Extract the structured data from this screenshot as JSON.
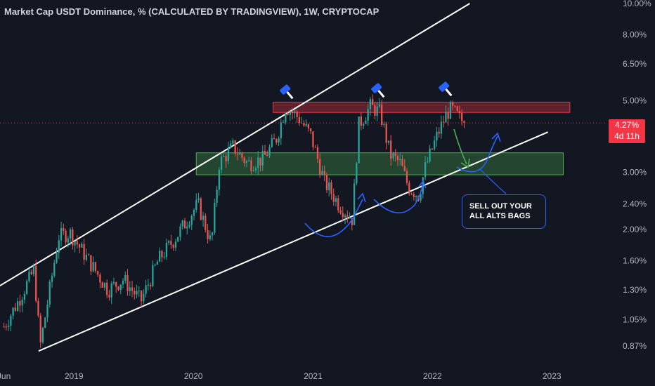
{
  "chart_title": "Market Cap USDT Dominance, % (CALCULATED BY TRADINGVIEW), 1W, CRYPTOCAP",
  "current_price": {
    "value": "4.27%",
    "countdown": "4d 11h"
  },
  "annotation": {
    "line1": "SELL OUT YOUR",
    "line2": "ALL ALTS BAGS"
  },
  "colors": {
    "background": "#131722",
    "up": "#26a69a",
    "down": "#ef5350",
    "resistance_zone": "#f23645",
    "support_zone": "#4caf50",
    "arrows": "#2962ff",
    "trendlines": "#ffffff"
  },
  "chart_data": {
    "type": "candlestick",
    "scale": "logarithmic",
    "y_tick_labels": [
      "10.00%",
      "8.00%",
      "6.50%",
      "5.00%",
      "3.00%",
      "2.40%",
      "2.00%",
      "1.60%",
      "1.30%",
      "1.05%",
      "0.87%"
    ],
    "x_tick_labels": [
      "Jun",
      "2019",
      "2020",
      "2021",
      "2022",
      "2023"
    ],
    "ylim": [
      0.82,
      10.0
    ],
    "x_range": [
      "2018-05-20",
      "2023-06-15"
    ],
    "current_value": 4.27,
    "resistance_zone": {
      "from": 4.6,
      "to": 4.95,
      "x_start": "2020-09-01",
      "x_end": "2023-02-25"
    },
    "support_zone": {
      "from": 2.95,
      "to": 3.45,
      "x_start": "2020-01-10",
      "x_end": "2023-02-05"
    },
    "channel_upper": [
      [
        "2018-04-01",
        1.25
      ],
      [
        "2022-04-25",
        10.0
      ]
    ],
    "channel_lower": [
      [
        "2018-09-15",
        0.84
      ],
      [
        "2022-12-20",
        4.0
      ]
    ],
    "anchors": [
      [
        "2018-06-01",
        1.0
      ],
      [
        "2018-07-15",
        1.2
      ],
      [
        "2018-09-01",
        1.5
      ],
      [
        "2018-09-20",
        0.87
      ],
      [
        "2018-11-15",
        1.9
      ],
      [
        "2018-12-20",
        1.95
      ],
      [
        "2019-02-15",
        1.6
      ],
      [
        "2019-04-15",
        1.3
      ],
      [
        "2019-06-01",
        1.4
      ],
      [
        "2019-07-25",
        1.2
      ],
      [
        "2019-09-15",
        1.6
      ],
      [
        "2019-11-10",
        1.9
      ],
      [
        "2019-12-15",
        2.15
      ],
      [
        "2020-01-15",
        2.4
      ],
      [
        "2020-02-25",
        1.8
      ],
      [
        "2020-03-20",
        3.2
      ],
      [
        "2020-05-01",
        3.6
      ],
      [
        "2020-06-15",
        3.2
      ],
      [
        "2020-08-01",
        3.3
      ],
      [
        "2020-09-10",
        3.8
      ],
      [
        "2020-10-10",
        4.8
      ],
      [
        "2020-11-20",
        4.4
      ],
      [
        "2020-12-25",
        3.9
      ],
      [
        "2021-02-05",
        2.8
      ],
      [
        "2021-03-20",
        2.4
      ],
      [
        "2021-05-01",
        2.15
      ],
      [
        "2021-05-20",
        4.2
      ],
      [
        "2021-06-25",
        4.8
      ],
      [
        "2021-07-25",
        4.6
      ],
      [
        "2021-08-25",
        3.4
      ],
      [
        "2021-09-25",
        3.2
      ],
      [
        "2021-10-20",
        2.7
      ],
      [
        "2021-11-20",
        2.55
      ],
      [
        "2021-12-10",
        3.1
      ],
      [
        "2022-01-15",
        3.9
      ],
      [
        "2022-02-15",
        4.6
      ],
      [
        "2022-03-01",
        4.7
      ],
      [
        "2022-03-25",
        4.4
      ],
      [
        "2022-04-10",
        4.27
      ]
    ]
  }
}
